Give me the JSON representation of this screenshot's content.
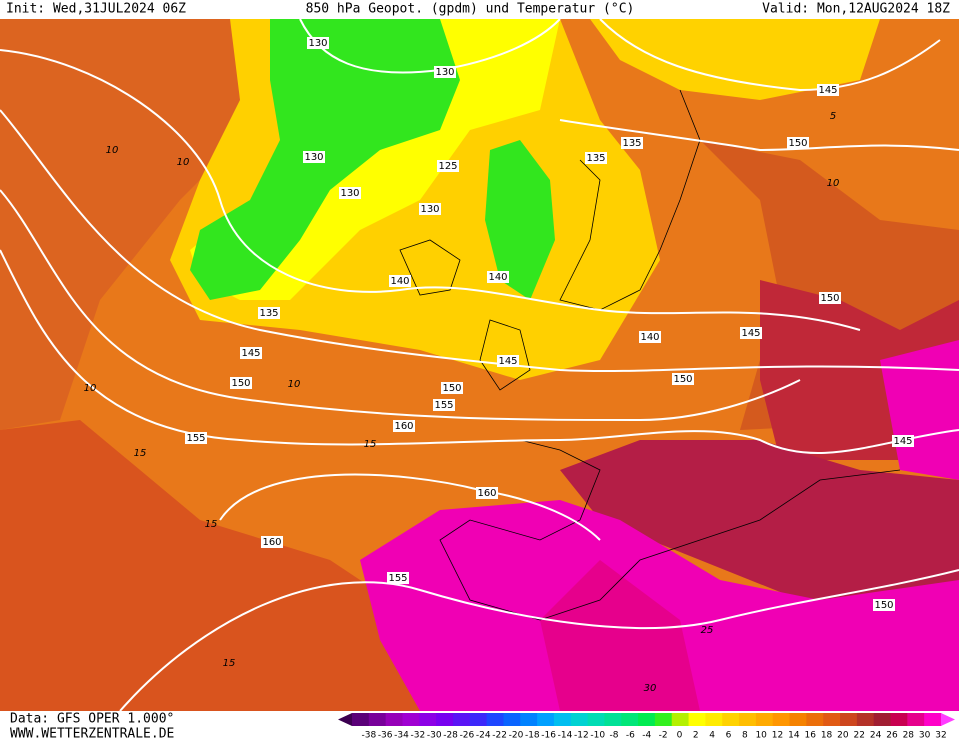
{
  "header": {
    "init": "Init: Wed,31JUL2024 06Z",
    "title": "850 hPa Geopot. (gpdm) und Temperatur (°C)",
    "valid": "Valid: Mon,12AUG2024 18Z"
  },
  "footer": {
    "data": "Data: GFS OPER 1.000°",
    "site": "WWW.WETTERZENTRALE.DE"
  },
  "geopotential_labels": [
    130,
    130,
    145,
    135,
    150,
    130,
    135,
    125,
    130,
    130,
    140,
    140,
    150,
    135,
    140,
    145,
    145,
    145,
    150,
    150,
    150,
    155,
    160,
    155,
    145,
    160,
    160,
    155,
    150
  ],
  "temperature_labels": [
    10,
    10,
    5,
    10,
    10,
    10,
    15,
    15,
    15,
    15,
    25,
    30
  ],
  "colorbar": {
    "ticks": [
      -38,
      -36,
      -34,
      -32,
      -30,
      -28,
      -26,
      -24,
      -22,
      -20,
      -18,
      -16,
      -14,
      -12,
      -10,
      -8,
      -6,
      -4,
      -2,
      0,
      2,
      4,
      6,
      8,
      10,
      12,
      14,
      16,
      18,
      20,
      22,
      24,
      26,
      28,
      30,
      32
    ],
    "colors": [
      "#3c0050",
      "#5a0078",
      "#78009a",
      "#9600b8",
      "#a000d2",
      "#8c00e6",
      "#7800f0",
      "#5a14f5",
      "#3c28fa",
      "#1e46ff",
      "#0a64ff",
      "#0082ff",
      "#00a0ff",
      "#00bef0",
      "#00d2d2",
      "#00dcb4",
      "#00e196",
      "#00e678",
      "#00eb50",
      "#32f01e",
      "#b4f000",
      "#ffff00",
      "#ffeb00",
      "#ffd200",
      "#ffbe00",
      "#ffaa00",
      "#ff9600",
      "#f58200",
      "#eb6e0a",
      "#e15a14",
      "#cd461e",
      "#b43228",
      "#a01e32",
      "#c80050",
      "#e6008c",
      "#ff00c8",
      "#ff3cff"
    ]
  }
}
